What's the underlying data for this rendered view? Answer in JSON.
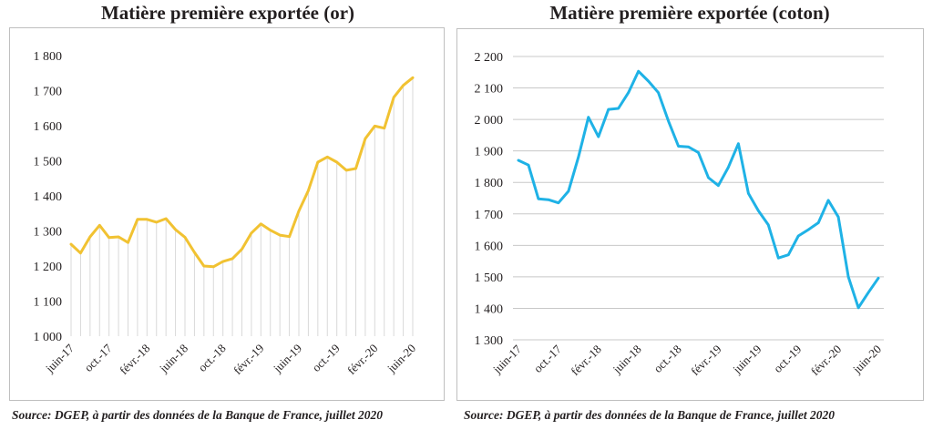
{
  "chart_data": [
    {
      "type": "area",
      "title": "Matière première exportée (or)",
      "source": "Source: DGEP, à partir des données de la Banque de France, juillet 2020",
      "ylim": [
        1000,
        1800
      ],
      "yticks": [
        "1 000",
        "1 100",
        "1 200",
        "1 300",
        "1 400",
        "1 500",
        "1 600",
        "1 700",
        "1 800"
      ],
      "grid": false,
      "color": "#f1c232",
      "drop_line_color": "#d9d9d9",
      "xtick_labels": [
        "juin-17",
        "oct.-17",
        "févr.-18",
        "juin-18",
        "oct.-18",
        "févr.-19",
        "juin-19",
        "oct.-19",
        "févr.-20",
        "juin-20"
      ],
      "values": [
        1262,
        1237,
        1283,
        1316,
        1281,
        1283,
        1267,
        1333,
        1333,
        1325,
        1335,
        1304,
        1282,
        1239,
        1200,
        1198,
        1213,
        1221,
        1248,
        1294,
        1320,
        1302,
        1288,
        1284,
        1357,
        1415,
        1496,
        1511,
        1496,
        1473,
        1478,
        1563,
        1599,
        1593,
        1681,
        1715,
        1737
      ]
    },
    {
      "type": "line",
      "title": "Matière première exportée (coton)",
      "source": "Source: DGEP, à partir des données de la Banque de France, juillet 2020",
      "ylim": [
        1300,
        2200
      ],
      "yticks": [
        "1 300",
        "1 400",
        "1 500",
        "1 600",
        "1 700",
        "1 800",
        "1 900",
        "2 000",
        "2 100",
        "2 200"
      ],
      "grid": true,
      "color": "#1fb2e6",
      "xtick_labels": [
        "juin-17",
        "oct.-17",
        "févr.-18",
        "juin-18",
        "oct.-18",
        "févr.-19",
        "juin-19",
        "oct.-19",
        "févr.-20",
        "juin-20"
      ],
      "values": [
        1870,
        1855,
        1748,
        1745,
        1735,
        1772,
        1880,
        2007,
        1945,
        2032,
        2035,
        2085,
        2153,
        2122,
        2085,
        1995,
        1915,
        1913,
        1895,
        1815,
        1790,
        1848,
        1923,
        1765,
        1710,
        1665,
        1560,
        1570,
        1630,
        1650,
        1672,
        1743,
        1690,
        1500,
        1402,
        1450,
        1496
      ]
    }
  ]
}
